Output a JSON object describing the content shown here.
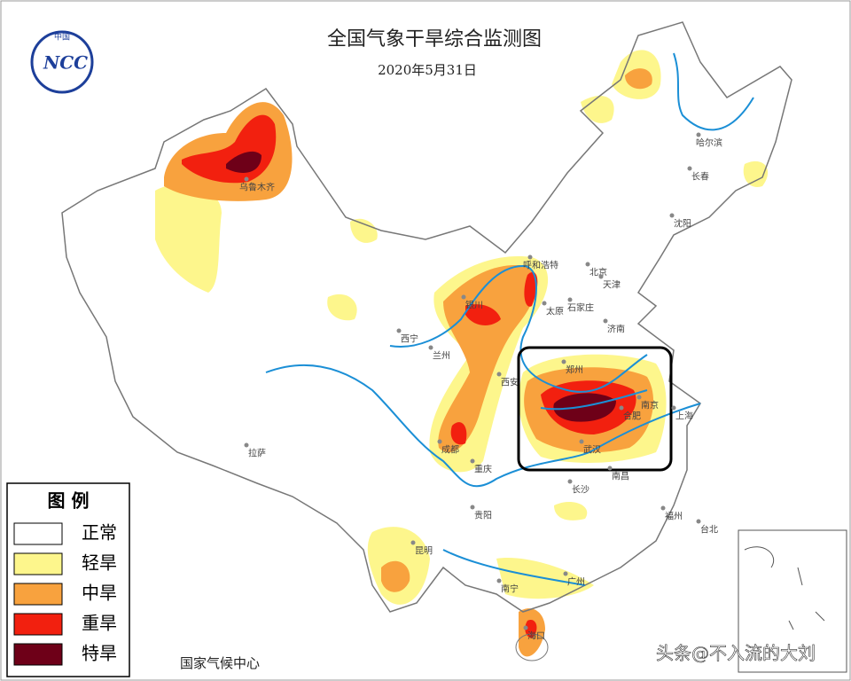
{
  "header": {
    "title": "全国气象干旱综合监测图",
    "date": "2020年5月31日"
  },
  "logo": {
    "top": "中国",
    "text": "NCC"
  },
  "legend": {
    "title": "图 例",
    "items": [
      {
        "label": "正常",
        "color": "#ffffff"
      },
      {
        "label": "轻旱",
        "color": "#fdf68c"
      },
      {
        "label": "中旱",
        "color": "#f8a23e"
      },
      {
        "label": "重旱",
        "color": "#f2200f"
      },
      {
        "label": "特旱",
        "color": "#6e0018"
      }
    ]
  },
  "cities": [
    "乌鲁木齐",
    "哈尔滨",
    "长春",
    "沈阳",
    "呼和浩特",
    "北京",
    "天津",
    "石家庄",
    "太原",
    "银川",
    "济南",
    "西宁",
    "兰州",
    "郑州",
    "西安",
    "南京",
    "合肥",
    "上海",
    "成都",
    "武汉",
    "重庆",
    "南昌",
    "长沙",
    "拉萨",
    "贵阳",
    "福州",
    "台北",
    "昆明",
    "南宁",
    "广州",
    "海口"
  ],
  "footer": {
    "source": "国家气候中心"
  },
  "watermark": "头条@不入流的大刘"
}
